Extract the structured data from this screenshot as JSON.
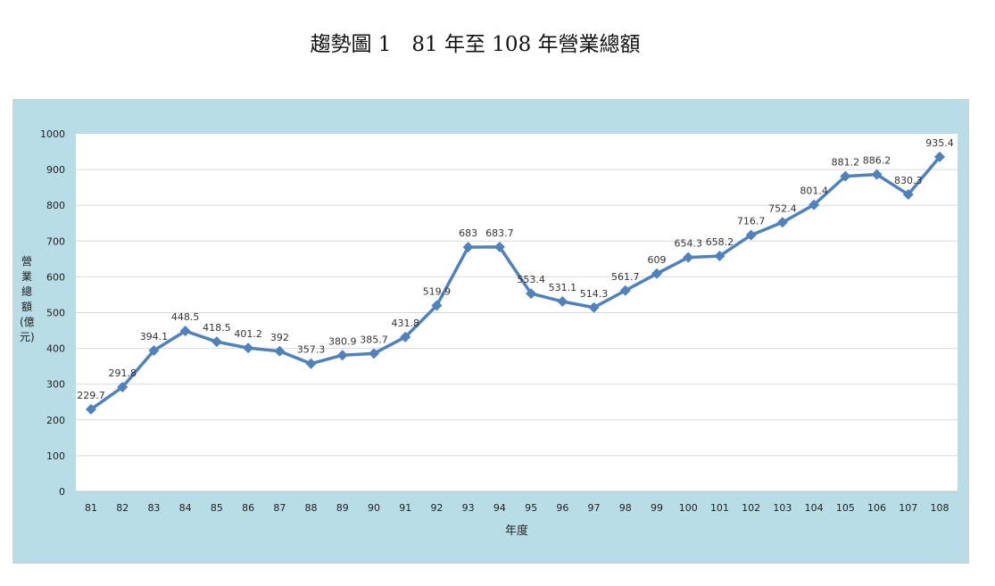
{
  "chart_data": {
    "type": "line",
    "title": "趨勢圖 1　81 年至 108 年營業總額",
    "xlabel": "年度",
    "ylabel": "營業總額(億元)",
    "ylim": [
      0,
      1000
    ],
    "yticks": [
      0,
      100,
      200,
      300,
      400,
      500,
      600,
      700,
      800,
      900,
      1000
    ],
    "grid": true,
    "categories": [
      "81",
      "82",
      "83",
      "84",
      "85",
      "86",
      "87",
      "88",
      "89",
      "90",
      "91",
      "92",
      "93",
      "94",
      "95",
      "96",
      "97",
      "98",
      "99",
      "100",
      "101",
      "102",
      "103",
      "104",
      "105",
      "106",
      "107",
      "108"
    ],
    "values": [
      229.7,
      291.8,
      394.1,
      448.5,
      418.5,
      401.2,
      392,
      357.3,
      380.9,
      385.7,
      431.8,
      519.9,
      683,
      683.7,
      553.4,
      531.1,
      514.3,
      561.7,
      609,
      654.3,
      658.2,
      716.7,
      752.4,
      801.4,
      881.2,
      886.2,
      830.3,
      935.4
    ],
    "labels": [
      "229.7",
      "291.8",
      "394.1",
      "448.5",
      "418.5",
      "401.2",
      "392",
      "357.3",
      "380.9",
      "385.7",
      "431.8",
      "519.9",
      "683",
      "683.7",
      "553.4",
      "531.1",
      "514.3",
      "561.7",
      "609",
      "654.3",
      "658.2",
      "716.7",
      "752.4",
      "801.4",
      "881.2",
      "886.2",
      "830.3",
      "935.4"
    ],
    "line_color": "#4f81bd"
  }
}
